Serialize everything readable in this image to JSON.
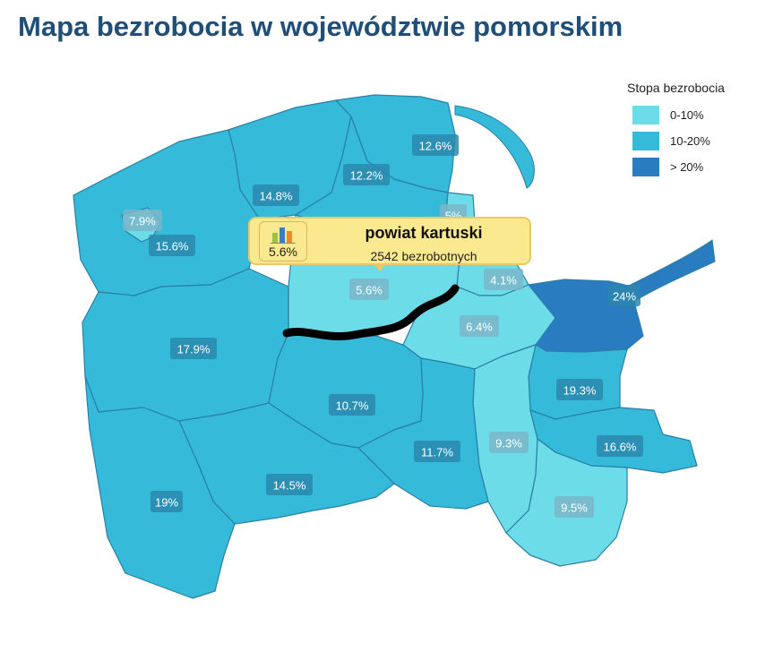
{
  "title": "Mapa bezrobocia w województwie pomorskim",
  "colors": {
    "low": "#6cdce9",
    "mid": "#35bad9",
    "high": "#2a7cc0",
    "border": "#2a7fa6",
    "tooltip_bg": "#fbe98f"
  },
  "legend": {
    "title": "Stopa bezrobocia",
    "items": [
      {
        "label": "0-10%",
        "color": "#6cdce9"
      },
      {
        "label": "10-20%",
        "color": "#35bad9"
      },
      {
        "label": "> 20%",
        "color": "#2a7cc0"
      }
    ]
  },
  "regions": [
    {
      "id": "r1",
      "value": "12.6%",
      "level": "mid"
    },
    {
      "id": "r2",
      "value": "12.2%",
      "level": "mid"
    },
    {
      "id": "r3",
      "value": "14.8%",
      "level": "mid"
    },
    {
      "id": "r4",
      "value": "7.9%",
      "level": "low"
    },
    {
      "id": "r5",
      "value": "15.6%",
      "level": "mid"
    },
    {
      "id": "r6",
      "value": "5%",
      "level": "low"
    },
    {
      "id": "r7",
      "value": "5.6%",
      "level": "low"
    },
    {
      "id": "r8",
      "value": "4.1%",
      "level": "low"
    },
    {
      "id": "r9",
      "value": "24%",
      "level": "high"
    },
    {
      "id": "r10",
      "value": "6.4%",
      "level": "low"
    },
    {
      "id": "r11",
      "value": "17.9%",
      "level": "mid"
    },
    {
      "id": "r12",
      "value": "10.7%",
      "level": "mid"
    },
    {
      "id": "r13",
      "value": "19.3%",
      "level": "mid"
    },
    {
      "id": "r14",
      "value": "9.3%",
      "level": "low"
    },
    {
      "id": "r15",
      "value": "11.7%",
      "level": "mid"
    },
    {
      "id": "r16",
      "value": "16.6%",
      "level": "mid"
    },
    {
      "id": "r17",
      "value": "14.5%",
      "level": "mid"
    },
    {
      "id": "r18",
      "value": "19%",
      "level": "mid"
    },
    {
      "id": "r19",
      "value": "9.5%",
      "level": "low"
    }
  ],
  "tooltip": {
    "region_name": "powiat kartuski",
    "percent": "5.6%",
    "count_text": "2542 bezrobotnych",
    "icon": "bar-chart-icon"
  }
}
